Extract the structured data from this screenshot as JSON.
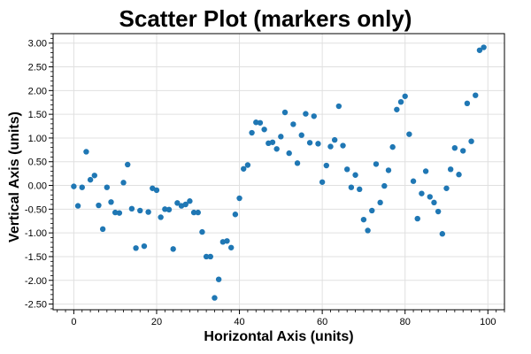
{
  "chart_data": {
    "type": "scatter",
    "title": "Scatter Plot (markers only)",
    "xlabel": "Horizontal Axis (units)",
    "ylabel": "Vertical Axis (units)",
    "xlim": [
      -5,
      104
    ],
    "ylim": [
      -2.62,
      3.2
    ],
    "grid": true,
    "marker_color": "#1f77b4",
    "x_ticks": [
      0,
      20,
      40,
      60,
      80,
      100
    ],
    "x_tick_labels": [
      "0",
      "20",
      "40",
      "60",
      "80",
      "100"
    ],
    "y_ticks": [
      3.0,
      2.5,
      2.0,
      1.5,
      1.0,
      0.5,
      0.0,
      -0.5,
      -1.0,
      -1.5,
      -2.0,
      -2.5
    ],
    "y_tick_labels": [
      "3.00",
      "2.50",
      "2.00",
      "1.50",
      "1.00",
      "0.50",
      "0.00",
      "-0.50",
      "-1.00",
      "-1.50",
      "-2.00",
      "-2.50"
    ],
    "series": [
      {
        "x": [
          0,
          1,
          2,
          3,
          4,
          5,
          6,
          7,
          8,
          9,
          10,
          11,
          12,
          13,
          14,
          15,
          16,
          17,
          18,
          19,
          20,
          21,
          22,
          23,
          24,
          25,
          26,
          27,
          28,
          29,
          30,
          31,
          32,
          33,
          34,
          35,
          36,
          37,
          38,
          39,
          40,
          41,
          42,
          43,
          44,
          45,
          46,
          47,
          48,
          49,
          50,
          51,
          52,
          53,
          54,
          55,
          56,
          57,
          58,
          59,
          60,
          61,
          62,
          63,
          64,
          65,
          66,
          67,
          68,
          69,
          70,
          71,
          72,
          73,
          74,
          75,
          76,
          77,
          78,
          79,
          80,
          81,
          82,
          83,
          84,
          85,
          86,
          87,
          88,
          89,
          90,
          91,
          92,
          93,
          94,
          95,
          96,
          97,
          98,
          99
        ],
        "y": [
          -0.02,
          -0.43,
          -0.04,
          0.71,
          0.12,
          0.21,
          -0.42,
          -0.92,
          -0.04,
          -0.35,
          -0.57,
          -0.58,
          0.06,
          0.44,
          -0.49,
          -1.32,
          -0.53,
          -1.28,
          -0.56,
          -0.06,
          -0.1,
          -0.67,
          -0.5,
          -0.51,
          -1.34,
          -0.37,
          -0.43,
          -0.4,
          -0.33,
          -0.57,
          -0.57,
          -0.98,
          -1.5,
          -1.5,
          -2.37,
          -1.98,
          -1.19,
          -1.17,
          -1.31,
          -0.61,
          -0.27,
          0.35,
          0.43,
          1.11,
          1.33,
          1.32,
          1.18,
          0.89,
          0.91,
          0.77,
          1.03,
          1.54,
          0.68,
          1.29,
          0.47,
          1.06,
          1.51,
          0.9,
          1.46,
          0.88,
          0.07,
          0.42,
          0.82,
          0.96,
          1.67,
          0.84,
          0.34,
          -0.04,
          0.22,
          -0.08,
          -0.72,
          -0.95,
          -0.53,
          0.45,
          -0.36,
          -0.01,
          0.32,
          0.81,
          1.6,
          1.76,
          1.88,
          1.08,
          0.09,
          -0.7,
          -0.17,
          0.3,
          -0.24,
          -0.36,
          -0.55,
          -1.02,
          -0.06,
          0.34,
          0.79,
          0.23,
          0.73,
          1.73,
          0.93,
          1.9,
          2.85,
          2.91
        ]
      }
    ]
  }
}
